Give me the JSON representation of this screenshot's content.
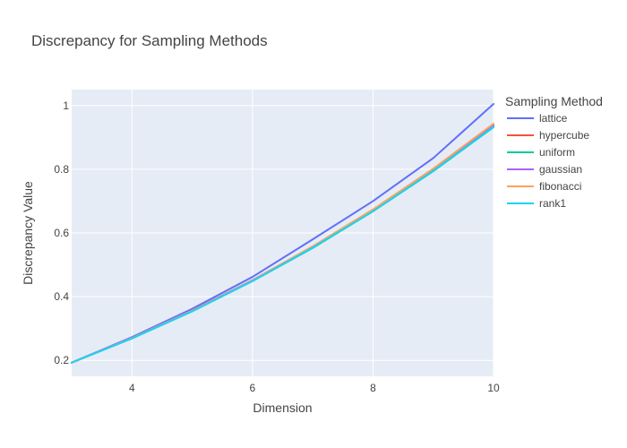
{
  "chart_data": {
    "type": "line",
    "title": "Discrepancy for Sampling Methods",
    "xlabel": "Dimension",
    "ylabel": "Discrepancy Value",
    "xlim": [
      3,
      10
    ],
    "ylim": [
      0.15,
      1.05
    ],
    "x_ticks": [
      4,
      6,
      8,
      10
    ],
    "y_ticks": [
      0.2,
      0.4,
      0.6,
      0.8,
      1
    ],
    "x_tick_labels": [
      "4",
      "6",
      "8",
      "10"
    ],
    "y_tick_labels": [
      "0.2",
      "0.4",
      "0.6",
      "0.8",
      "1"
    ],
    "grid": true,
    "legend_title": "Sampling Method",
    "legend_position": "right",
    "x": [
      3,
      4,
      5,
      6,
      7,
      8,
      9,
      10
    ],
    "series": [
      {
        "name": "lattice",
        "color": "#636efa",
        "values": [
          0.193,
          0.273,
          0.362,
          0.462,
          0.58,
          0.7,
          0.835,
          1.005
        ]
      },
      {
        "name": "hypercube",
        "color": "#ef553b",
        "values": [
          0.193,
          0.27,
          0.355,
          0.45,
          0.555,
          0.67,
          0.797,
          0.937
        ]
      },
      {
        "name": "uniform",
        "color": "#00cc96",
        "values": [
          0.193,
          0.269,
          0.354,
          0.449,
          0.553,
          0.668,
          0.794,
          0.932
        ]
      },
      {
        "name": "gaussian",
        "color": "#ab63fa",
        "values": [
          0.193,
          0.271,
          0.357,
          0.452,
          0.557,
          0.672,
          0.799,
          0.939
        ]
      },
      {
        "name": "fibonacci",
        "color": "#ffa15a",
        "values": [
          0.193,
          0.27,
          0.356,
          0.451,
          0.558,
          0.674,
          0.802,
          0.943
        ]
      },
      {
        "name": "rank1",
        "color": "#19d3f3",
        "values": [
          0.193,
          0.269,
          0.354,
          0.449,
          0.554,
          0.668,
          0.795,
          0.933
        ]
      }
    ]
  }
}
